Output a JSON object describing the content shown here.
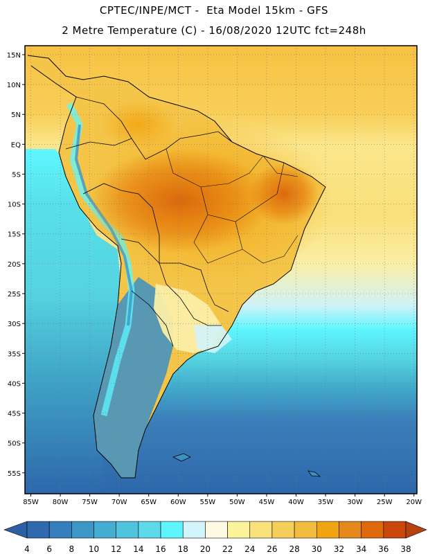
{
  "header": {
    "line1": "CPTEC/INPE/MCT -  Eta Model 15km - GFS",
    "line2": "2 Metre Temperature (C) - 16/08/2020 12UTC fct=248h"
  },
  "map": {
    "lat_ticks": [
      "15N",
      "10N",
      "5N",
      "EQ",
      "5S",
      "10S",
      "15S",
      "20S",
      "25S",
      "30S",
      "35S",
      "40S",
      "45S",
      "50S",
      "55S"
    ],
    "lon_ticks": [
      "85W",
      "80W",
      "75W",
      "70W",
      "65W",
      "60W",
      "55W",
      "50W",
      "45W",
      "40W",
      "35W",
      "30W",
      "25W",
      "20W"
    ],
    "lon_range": [
      -86,
      -19.5
    ],
    "lat_range": [
      -58.5,
      16.5
    ],
    "ocean_gradient": [
      {
        "lat": 16,
        "color": "#f7c244"
      },
      {
        "lat": 5,
        "color": "#f8cf58"
      },
      {
        "lat": 0,
        "color": "#fbe68c"
      },
      {
        "lat": -12,
        "color": "#f9e07a"
      },
      {
        "lat": -20,
        "color": "#fbeea6"
      },
      {
        "lat": -27,
        "color": "#cff2f7"
      },
      {
        "lat": -31,
        "color": "#5ff6ff"
      },
      {
        "lat": -36,
        "color": "#55d3e0"
      },
      {
        "lat": -41,
        "color": "#41a8c9"
      },
      {
        "lat": -46,
        "color": "#3b7fba"
      },
      {
        "lat": -58.5,
        "color": "#2d67ab"
      }
    ],
    "west_ocean_gradient": [
      {
        "lat": 0,
        "color": "#fbe68c"
      },
      {
        "lat": -1,
        "color": "#5ff6ff"
      },
      {
        "lat": -10,
        "color": "#58e0ea"
      },
      {
        "lat": -25,
        "color": "#55d3e0"
      },
      {
        "lat": -38,
        "color": "#41a8c9"
      },
      {
        "lat": -58.5,
        "color": "#2d67ab"
      }
    ]
  },
  "colorbar": {
    "labels": [
      "4",
      "6",
      "8",
      "10",
      "12",
      "14",
      "16",
      "18",
      "20",
      "22",
      "24",
      "26",
      "28",
      "30",
      "32",
      "34",
      "36",
      "38"
    ],
    "colors": [
      "#2f6aae",
      "#357ebb",
      "#3c96c6",
      "#44aed2",
      "#50c3df",
      "#5dd9ea",
      "#5ff5ff",
      "#d2f4fb",
      "#fdfae4",
      "#fbf39a",
      "#f9e27a",
      "#f6cf5b",
      "#f2bc3e",
      "#f2a512",
      "#e7881d",
      "#df6a0d",
      "#c9470b"
    ],
    "low_color": "#2d5fa5",
    "high_color": "#b8420f"
  }
}
